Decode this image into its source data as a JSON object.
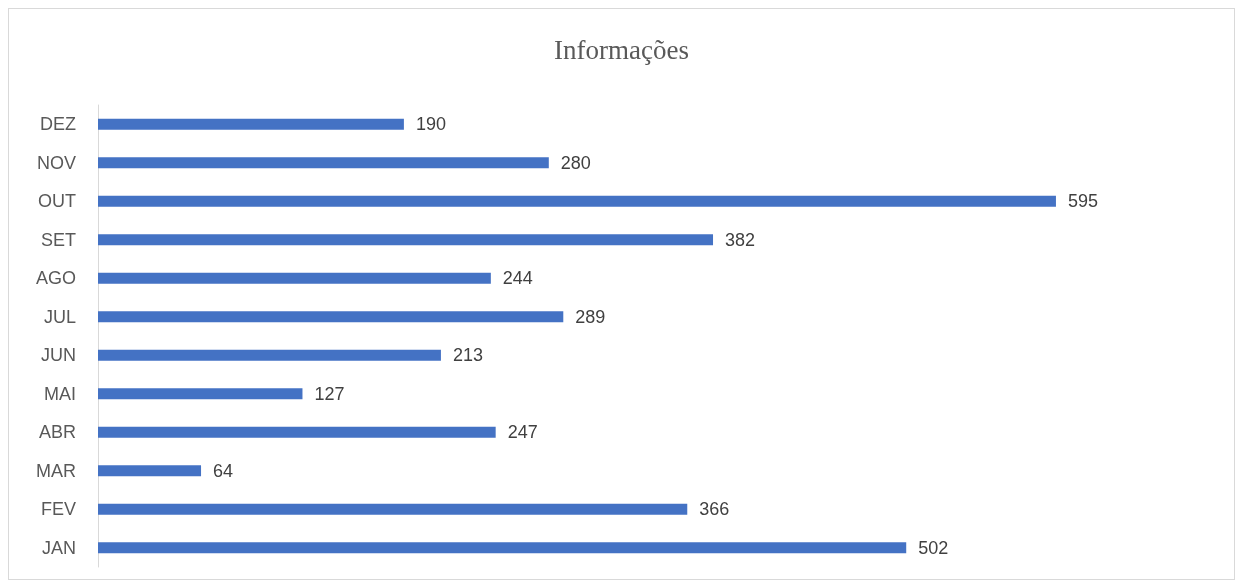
{
  "chart_data": {
    "type": "bar",
    "orientation": "horizontal",
    "title": "Informações",
    "categories": [
      "DEZ",
      "NOV",
      "OUT",
      "SET",
      "AGO",
      "JUL",
      "JUN",
      "MAI",
      "ABR",
      "MAR",
      "FEV",
      "JAN"
    ],
    "values": [
      190,
      280,
      595,
      382,
      244,
      289,
      213,
      127,
      247,
      64,
      366,
      502
    ],
    "color": "#4472c4",
    "data_labels": true,
    "grid": false
  }
}
